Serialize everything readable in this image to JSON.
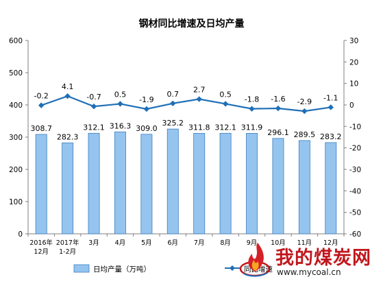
{
  "chart_data": {
    "type": "bar",
    "title": "钢材同比增速及日均产量",
    "categories": [
      [
        "2016年",
        "12月"
      ],
      [
        "2017年",
        "1-2月"
      ],
      [
        "3月"
      ],
      [
        "4月"
      ],
      [
        "5月"
      ],
      [
        "6月"
      ],
      [
        "7月"
      ],
      [
        "8月"
      ],
      [
        "9月"
      ],
      [
        "10月"
      ],
      [
        "11月"
      ],
      [
        "12月"
      ]
    ],
    "series": [
      {
        "name": "日均产量（万吨）",
        "type": "bar",
        "axis": "left",
        "color": "#95c4ee",
        "values": [
          308.7,
          282.3,
          312.1,
          316.3,
          309.0,
          325.2,
          311.8,
          312.1,
          311.9,
          296.1,
          289.5,
          283.2
        ],
        "labels": [
          "308.7",
          "282.3",
          "312.1",
          "316.3",
          "309.0",
          "325.2",
          "311.8",
          "312.1",
          "311.9",
          "296.1",
          "289.5",
          "283.2"
        ]
      },
      {
        "name": "同比增速",
        "type": "line",
        "axis": "right",
        "color": "#1f6fb6",
        "values": [
          -0.2,
          4.1,
          -0.7,
          0.5,
          -1.9,
          0.7,
          2.7,
          0.5,
          -1.8,
          -1.6,
          -2.9,
          -1.1
        ],
        "labels": [
          "-0.2",
          "4.1",
          "-0.7",
          "0.5",
          "-1.9",
          "0.7",
          "2.7",
          "0.5",
          "-1.8",
          "-1.6",
          "-2.9",
          "-1.1"
        ]
      }
    ],
    "y_left": {
      "min": 0,
      "max": 600,
      "ticks": [
        0,
        100,
        200,
        300,
        400,
        500,
        600
      ]
    },
    "y_right": {
      "min": -60,
      "max": 30,
      "ticks": [
        -60,
        -50,
        -40,
        -30,
        -20,
        -10,
        0,
        10,
        20,
        30
      ]
    },
    "legend": {
      "position": "bottom-left",
      "entries": [
        "日均产量（万吨）",
        "同比增速"
      ]
    },
    "grid": false
  },
  "watermark": {
    "main": "我的煤炭网",
    "url": "www.mycoal.cn"
  }
}
